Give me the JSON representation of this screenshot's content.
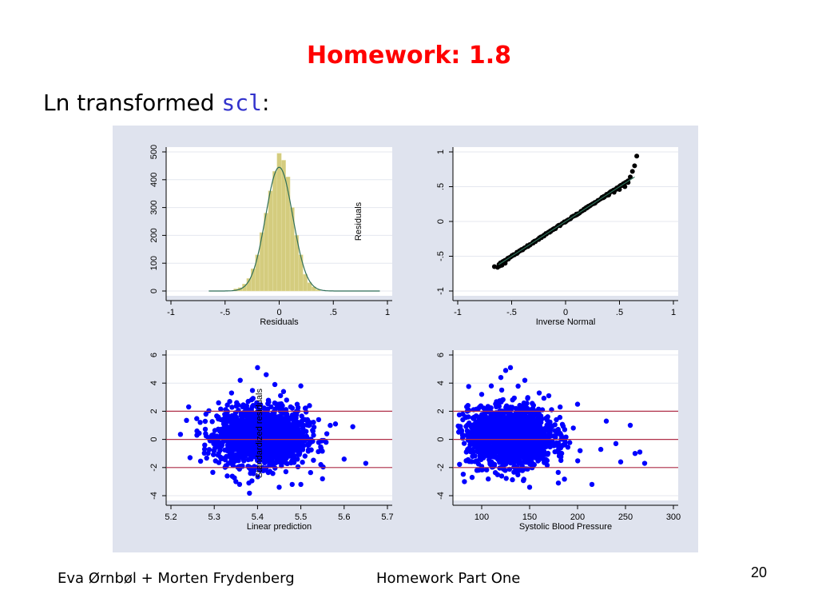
{
  "slide": {
    "title": "Homework: 1.8",
    "subtitle_prefix": "Ln transformed ",
    "subtitle_code": "scl",
    "subtitle_suffix": ":",
    "title_color": "#ff0000",
    "code_color": "#3333cc"
  },
  "footer": {
    "authors": "Eva Ørnbøl + Morten Frydenberg",
    "course": "Homework Part One",
    "page_number": "20"
  },
  "colors": {
    "panel_background": "#dfe3ee",
    "histogram_fill": "#d4cc7e",
    "density_line": "#2e6e57",
    "qq_points": "#000000",
    "scatter_points": "#0000ff",
    "reference_lines": "#b0304a"
  },
  "chart_data": [
    {
      "type": "bar",
      "subtype": "histogram-with-normal-density",
      "xlabel": "Residuals",
      "ylabel": "",
      "xlim": [
        -1,
        1
      ],
      "ylim": [
        0,
        500
      ],
      "xticks": [
        "-1",
        "-.5",
        "0",
        ".5",
        "1"
      ],
      "yticks": [
        "0",
        "100",
        "200",
        "300",
        "400",
        "500"
      ],
      "bin_width": 0.04,
      "bins": [
        {
          "x": -0.4,
          "y": 8
        },
        {
          "x": -0.36,
          "y": 12
        },
        {
          "x": -0.32,
          "y": 25
        },
        {
          "x": -0.28,
          "y": 45
        },
        {
          "x": -0.24,
          "y": 80
        },
        {
          "x": -0.2,
          "y": 130
        },
        {
          "x": -0.16,
          "y": 210
        },
        {
          "x": -0.12,
          "y": 280
        },
        {
          "x": -0.08,
          "y": 360
        },
        {
          "x": -0.04,
          "y": 430
        },
        {
          "x": -0.0,
          "y": 495
        },
        {
          "x": 0.04,
          "y": 470
        },
        {
          "x": 0.08,
          "y": 410
        },
        {
          "x": 0.12,
          "y": 300
        },
        {
          "x": 0.16,
          "y": 200
        },
        {
          "x": 0.2,
          "y": 130
        },
        {
          "x": 0.24,
          "y": 60
        },
        {
          "x": 0.28,
          "y": 30
        },
        {
          "x": 0.32,
          "y": 15
        },
        {
          "x": 0.36,
          "y": 5
        }
      ],
      "density": {
        "mean": 0.0,
        "sd": 0.125,
        "peak": 445,
        "x_range": [
          -0.65,
          0.93
        ]
      }
    },
    {
      "type": "scatter",
      "subtype": "normal-quantile-plot",
      "xlabel": "Inverse Normal",
      "ylabel": "Residuals",
      "xlim": [
        -1,
        1
      ],
      "ylim": [
        -1,
        1
      ],
      "xticks": [
        "-1",
        "-.5",
        "0",
        ".5",
        "1"
      ],
      "yticks": [
        "-1",
        "-.5",
        "0",
        ".5",
        "1"
      ],
      "reference_line": [
        [
          -0.62,
          -0.62
        ],
        [
          0.64,
          0.64
        ]
      ],
      "points": [
        [
          -0.66,
          -0.65
        ],
        [
          -0.63,
          -0.66
        ],
        [
          -0.61,
          -0.64
        ],
        [
          -0.59,
          -0.63
        ],
        [
          -0.56,
          -0.6
        ],
        [
          -0.53,
          -0.54
        ],
        [
          -0.5,
          -0.5
        ],
        [
          -0.45,
          -0.46
        ],
        [
          -0.4,
          -0.41
        ],
        [
          -0.35,
          -0.36
        ],
        [
          -0.3,
          -0.31
        ],
        [
          -0.25,
          -0.26
        ],
        [
          -0.2,
          -0.21
        ],
        [
          -0.15,
          -0.155
        ],
        [
          -0.1,
          -0.105
        ],
        [
          -0.05,
          -0.055
        ],
        [
          0.0,
          -0.003
        ],
        [
          0.05,
          0.047
        ],
        [
          0.1,
          0.097
        ],
        [
          0.15,
          0.148
        ],
        [
          0.2,
          0.198
        ],
        [
          0.25,
          0.25
        ],
        [
          0.3,
          0.3
        ],
        [
          0.35,
          0.34
        ],
        [
          0.4,
          0.38
        ],
        [
          0.45,
          0.42
        ],
        [
          0.5,
          0.46
        ],
        [
          0.55,
          0.5
        ],
        [
          0.58,
          0.56
        ],
        [
          0.6,
          0.64
        ],
        [
          0.62,
          0.72
        ],
        [
          0.64,
          0.8
        ],
        [
          0.66,
          0.94
        ]
      ]
    },
    {
      "type": "scatter",
      "subtype": "residual-vs-fitted",
      "xlabel": "Linear prediction",
      "ylabel": "Standardized residuals",
      "xlim": [
        5.2,
        5.7
      ],
      "ylim": [
        -4,
        6
      ],
      "xticks": [
        "5.2",
        "5.3",
        "5.4",
        "5.5",
        "5.6",
        "5.7"
      ],
      "yticks": [
        "-4",
        "-2",
        "0",
        "2",
        "4",
        "6"
      ],
      "reference_lines_y": [
        -2,
        0,
        2
      ],
      "cloud": {
        "center_x": 5.41,
        "spread_x": 0.05,
        "center_y": 0.2,
        "spread_y": 1.0,
        "n": 1800
      },
      "points": [
        [
          5.26,
          0.3
        ],
        [
          5.28,
          0.4
        ],
        [
          5.3,
          -0.8
        ],
        [
          5.31,
          2.6
        ],
        [
          5.33,
          -2.6
        ],
        [
          5.34,
          3.3
        ],
        [
          5.36,
          4.2
        ],
        [
          5.4,
          5.1
        ],
        [
          5.42,
          4.6
        ],
        [
          5.44,
          3.9
        ],
        [
          5.46,
          3.4
        ],
        [
          5.5,
          3.8
        ],
        [
          5.5,
          -3.2
        ],
        [
          5.52,
          2.4
        ],
        [
          5.56,
          0.4
        ],
        [
          5.58,
          1.1
        ],
        [
          5.6,
          -1.4
        ],
        [
          5.62,
          0.9
        ],
        [
          5.65,
          -1.7
        ],
        [
          5.38,
          -3.1
        ],
        [
          5.45,
          -3.4
        ],
        [
          5.48,
          -3.2
        ],
        [
          5.35,
          -3.0
        ],
        [
          5.55,
          -2.8
        ]
      ]
    },
    {
      "type": "scatter",
      "subtype": "residual-vs-covariate",
      "xlabel": "Systolic Blood Pressure",
      "ylabel": "",
      "xlim": [
        75,
        300
      ],
      "ylim": [
        -4,
        6
      ],
      "xticks": [
        "100",
        "150",
        "200",
        "250",
        "300"
      ],
      "yticks": [
        "-4",
        "-2",
        "0",
        "2",
        "4",
        "6"
      ],
      "reference_lines_y": [
        -2,
        0,
        2
      ],
      "cloud": {
        "center_x": 130,
        "spread_x": 22,
        "center_y": 0.2,
        "spread_y": 1.0,
        "n": 1800
      },
      "points": [
        [
          80,
          0.3
        ],
        [
          82,
          -3.0
        ],
        [
          90,
          -2.7
        ],
        [
          100,
          3.2
        ],
        [
          110,
          3.8
        ],
        [
          120,
          4.4
        ],
        [
          125,
          4.9
        ],
        [
          130,
          5.1
        ],
        [
          145,
          4.2
        ],
        [
          150,
          -3.4
        ],
        [
          160,
          3.3
        ],
        [
          170,
          3.1
        ],
        [
          180,
          -3.1
        ],
        [
          200,
          2.5
        ],
        [
          215,
          -3.2
        ],
        [
          230,
          1.3
        ],
        [
          240,
          -0.3
        ],
        [
          245,
          -1.6
        ],
        [
          255,
          1.0
        ],
        [
          260,
          -1.0
        ],
        [
          265,
          -0.9
        ],
        [
          270,
          -1.7
        ],
        [
          85,
          2.0
        ],
        [
          95,
          -2.2
        ]
      ]
    }
  ]
}
